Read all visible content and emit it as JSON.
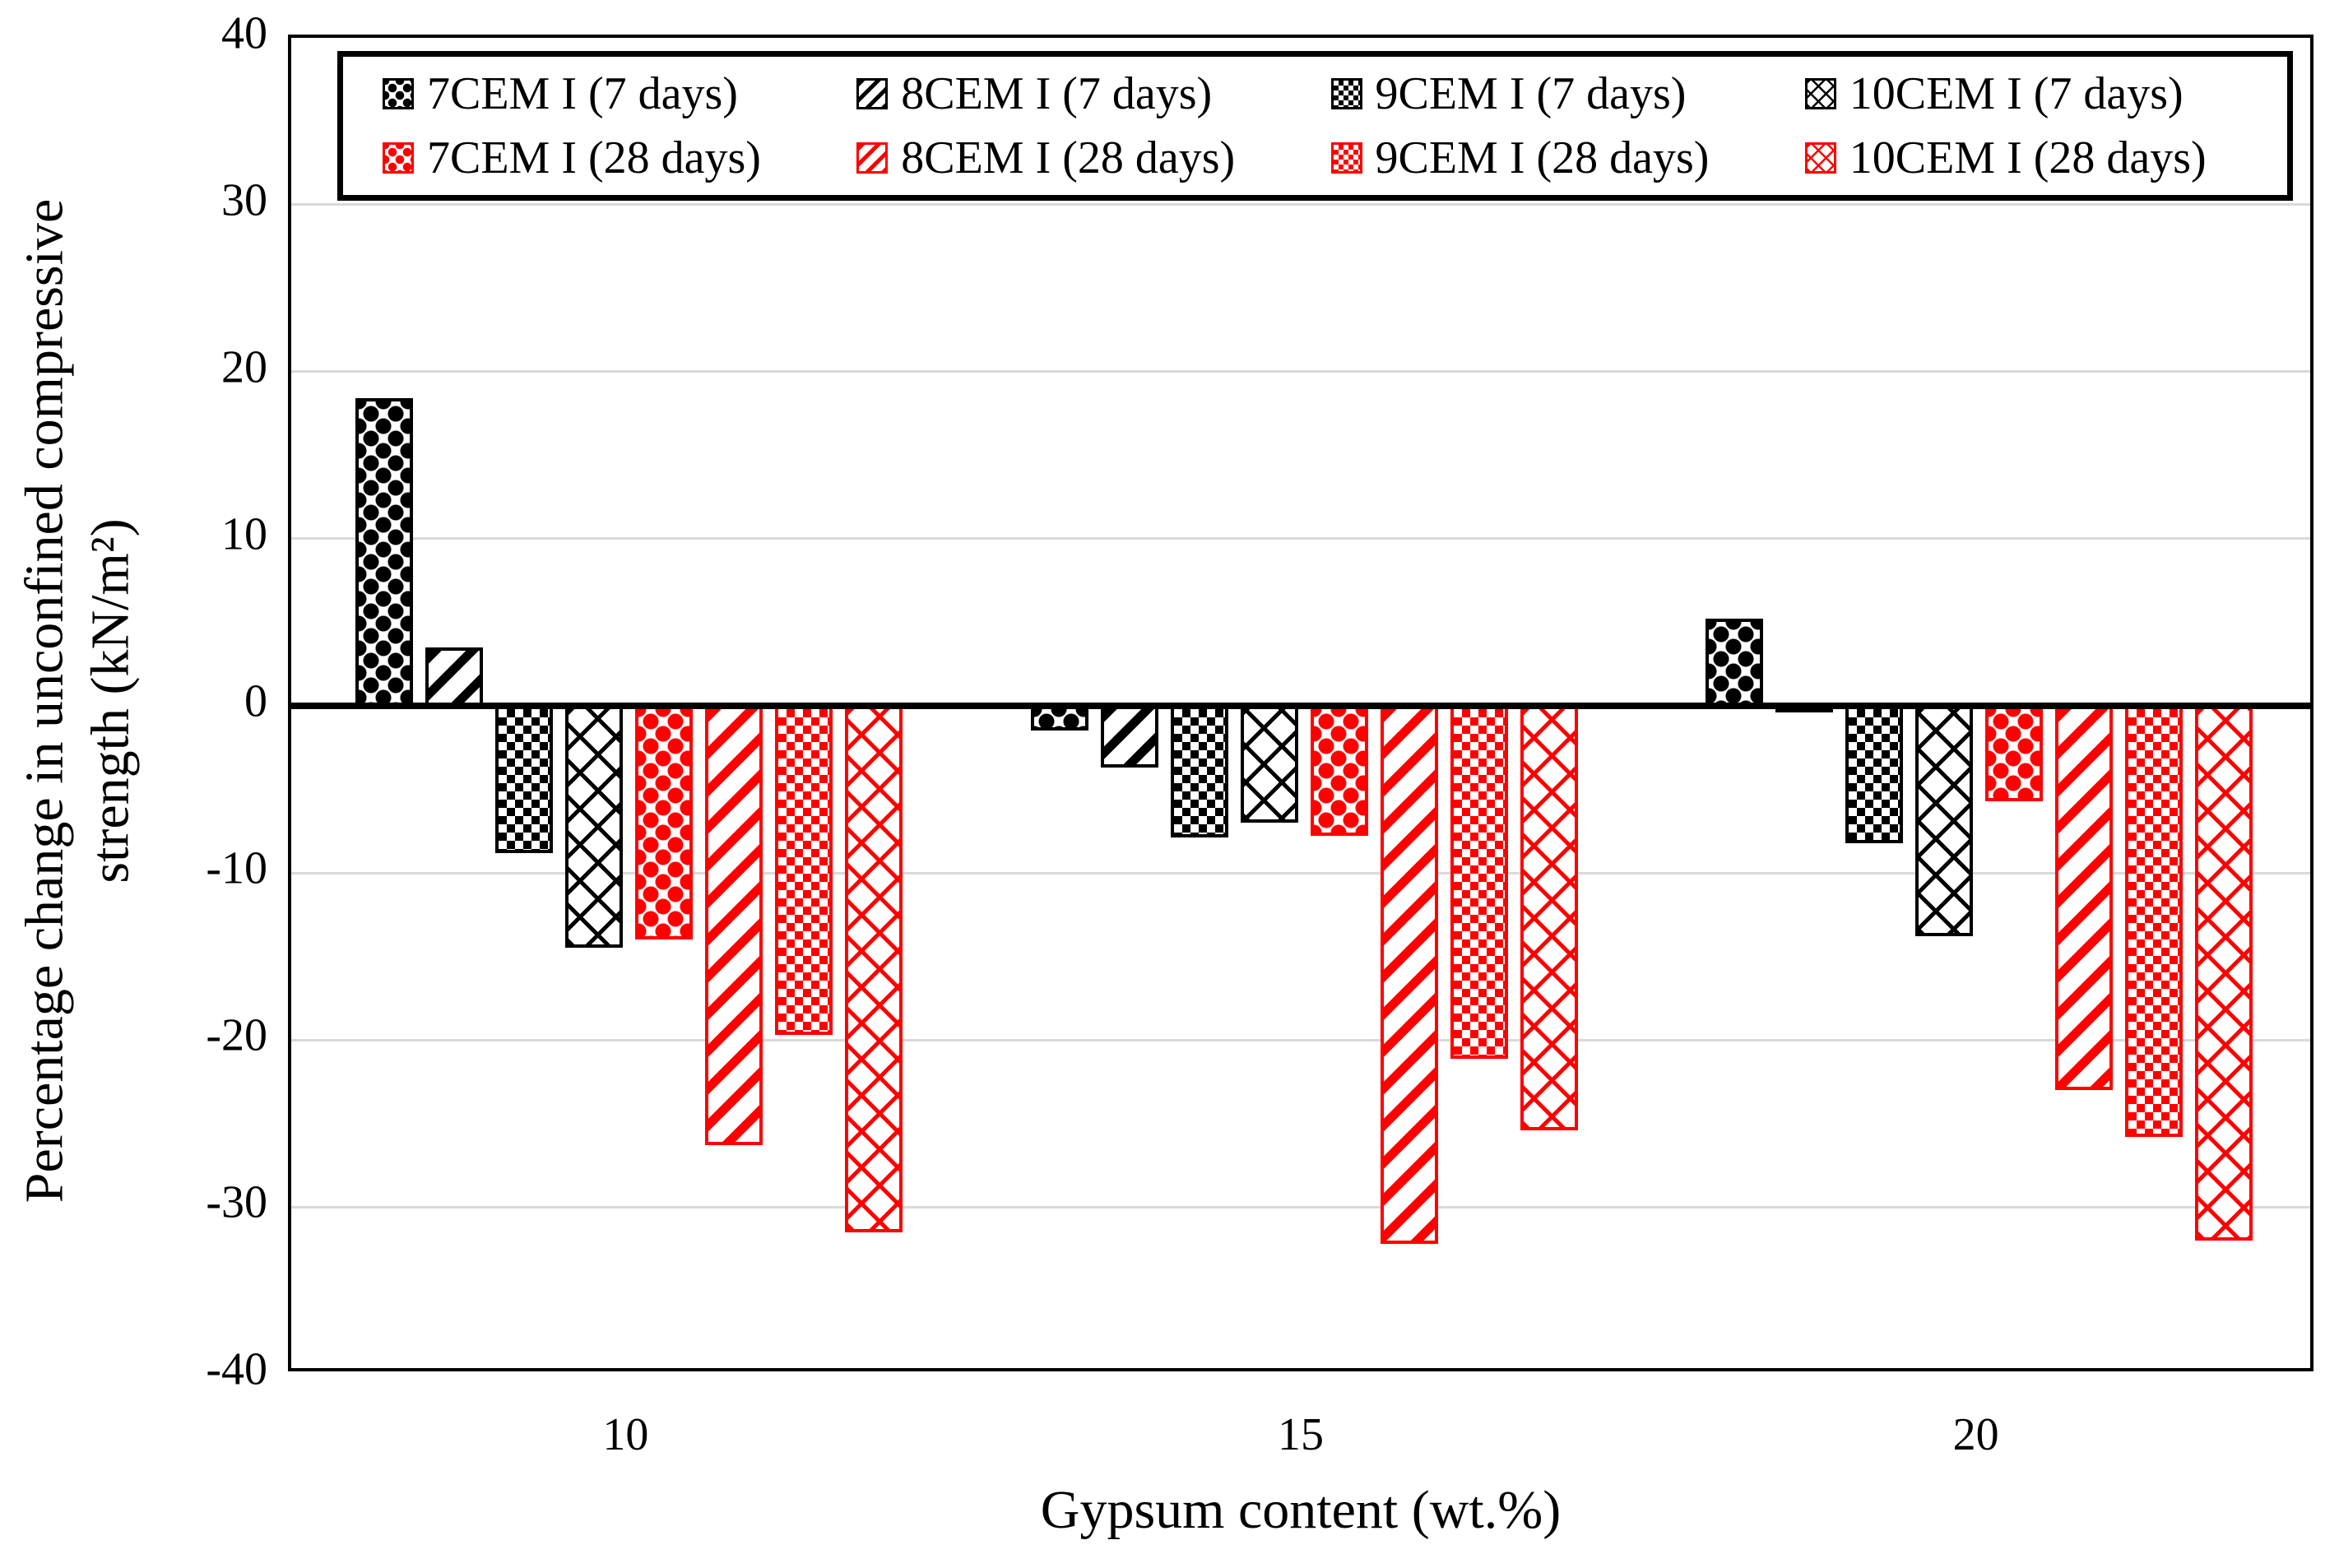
{
  "figure": {
    "background": "#FFFFFF",
    "text_color": "#000000"
  },
  "chart_data": {
    "type": "bar",
    "title": "",
    "xlabel": "Gypsum content (wt.%)",
    "ylabel_line1": "Percentage change in unconfined compressive",
    "ylabel_line2": "strength (kN/m²)",
    "categories": [
      "10",
      "15",
      "20"
    ],
    "ylim": [
      -40,
      40
    ],
    "ytick_step": 10,
    "yticks": [
      {
        "label": "40",
        "value": 40
      },
      {
        "label": "30",
        "value": 30
      },
      {
        "label": "20",
        "value": 20
      },
      {
        "label": "10",
        "value": 10
      },
      {
        "label": "0",
        "value": 0
      },
      {
        "label": "-10",
        "value": -10
      },
      {
        "label": "-20",
        "value": -20
      },
      {
        "label": "-30",
        "value": -30
      },
      {
        "label": "-40",
        "value": -40
      }
    ],
    "gridline_values": [
      30,
      20,
      10,
      -10,
      -20,
      -30
    ],
    "grid": "horizontal",
    "legend_position": "top-inside",
    "colors": {
      "series_7day": "#000000",
      "series_28day": "#FF0000",
      "gridline": "#D9D9D9",
      "axis": "#000000",
      "background": "#FFFFFF"
    },
    "series": [
      {
        "name": "7CEM I (7 days)",
        "color": "#000000",
        "pattern": "ball",
        "values": [
          18.4,
          -1.5,
          5.2
        ]
      },
      {
        "name": "8CEM I (7 days)",
        "color": "#000000",
        "pattern": "diag",
        "values": [
          3.5,
          -3.7,
          -0.4
        ]
      },
      {
        "name": "9CEM I (7 days)",
        "color": "#000000",
        "pattern": "check",
        "values": [
          -8.8,
          -7.9,
          -8.2
        ]
      },
      {
        "name": "10CEM I (7 days)",
        "color": "#000000",
        "pattern": "diamond",
        "values": [
          -14.5,
          -7.0,
          -13.8
        ]
      },
      {
        "name": "7CEM I (28 days)",
        "color": "#FF0000",
        "pattern": "ball",
        "values": [
          -14.0,
          -7.8,
          -5.7
        ]
      },
      {
        "name": "8CEM I (28 days)",
        "color": "#FF0000",
        "pattern": "diag",
        "values": [
          -26.3,
          -32.2,
          -23.0
        ]
      },
      {
        "name": "9CEM I (28 days)",
        "color": "#FF0000",
        "pattern": "check",
        "values": [
          -19.7,
          -21.1,
          -25.8
        ]
      },
      {
        "name": "10CEM I (28 days)",
        "color": "#FF0000",
        "pattern": "diamond",
        "values": [
          -31.5,
          -25.4,
          -32.0
        ]
      }
    ]
  }
}
